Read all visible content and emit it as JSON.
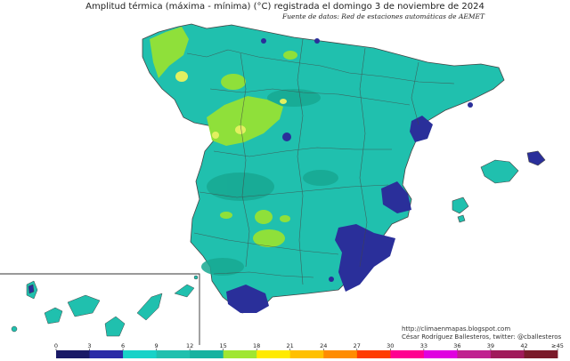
{
  "title": "Amplitud térmica (máxima - mínima) (°C) registrada el domingo 3 de noviembre de 2024",
  "subtitle": "Fuente de datos: Red de estaciones automáticas de AEMET",
  "credits": {
    "url": "http://climaenmapas.blogspot.com",
    "author": "César Rodríguez Ballesteros, twitter: @cballesteros"
  },
  "legend": {
    "ticks": [
      "0",
      "3",
      "6",
      "9",
      "12",
      "15",
      "18",
      "21",
      "24",
      "27",
      "30",
      "33",
      "36",
      "39",
      "42",
      "≥45"
    ],
    "colors": [
      "#1a1a66",
      "#2b2ba6",
      "#18d2c8",
      "#20c0ae",
      "#17b2a0",
      "#a0e632",
      "#ffea00",
      "#ffc000",
      "#ff8c00",
      "#ff3c00",
      "#ff0090",
      "#e000e0",
      "#c02090",
      "#a01a5a",
      "#7a1a2a"
    ]
  },
  "palette": {
    "land": "#20c0ae",
    "land_dark": "#17a892",
    "low": "#2a2f9a",
    "mid": "#8fe03a",
    "high": "#e2f060",
    "border": "#444444",
    "sea": "#ffffff"
  }
}
